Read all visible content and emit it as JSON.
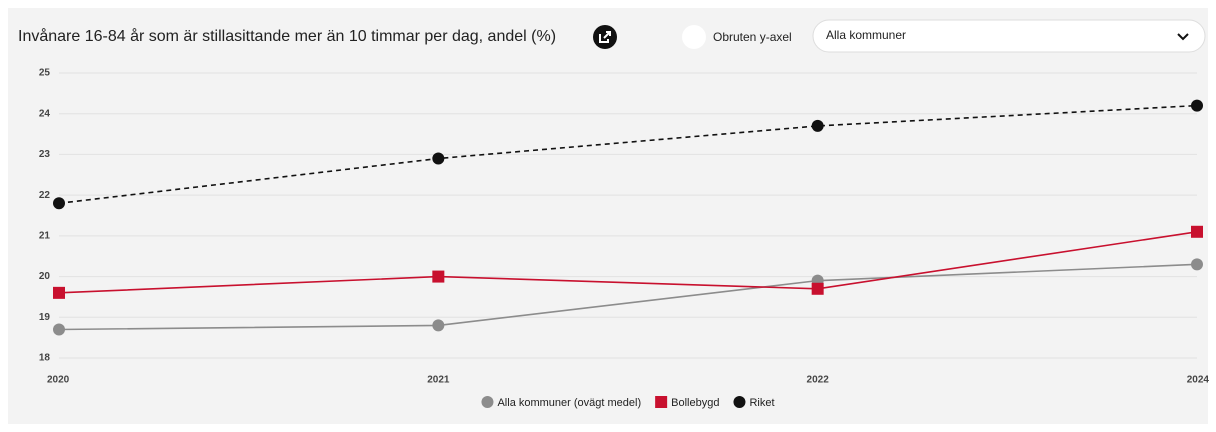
{
  "controls": {
    "toggle_label": "Obruten y-axel",
    "dropdown_value": "Alla kommuner"
  },
  "chart_data": {
    "type": "line",
    "title": "Invånare 16-84 år som är stillasittande mer än 10 timmar per dag, andel (%)",
    "categories": [
      "2020",
      "2021",
      "2022",
      "2024"
    ],
    "series": [
      {
        "name": "Alla kommuner (ovägt medel)",
        "color": "#8c8c8c",
        "marker": "circle",
        "dashed": false,
        "values": [
          18.7,
          18.8,
          19.9,
          20.3
        ]
      },
      {
        "name": "Bollebygd",
        "color": "#c8102e",
        "marker": "square",
        "dashed": false,
        "values": [
          19.6,
          20.0,
          19.7,
          21.1
        ]
      },
      {
        "name": "Riket",
        "color": "#111111",
        "marker": "circle",
        "dashed": true,
        "values": [
          21.8,
          22.9,
          23.7,
          24.2
        ]
      }
    ],
    "ylim": [
      18,
      25
    ],
    "yticks": [
      18,
      19,
      20,
      21,
      22,
      23,
      24,
      25
    ],
    "grid": true,
    "legend": "bottom"
  }
}
